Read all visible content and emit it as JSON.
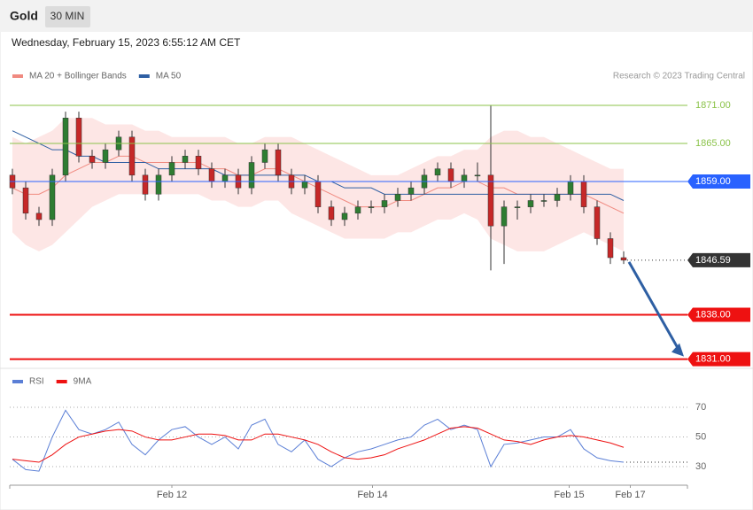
{
  "header": {
    "title": "Gold",
    "interval": "30 MIN",
    "timestamp": "Wednesday, February 15, 2023 6:55:12 AM CET",
    "source": "Research © 2023 Trading Central"
  },
  "chart_data": [
    {
      "type": "candlestick",
      "up_color": "#2e7d32",
      "down_color": "#c62828",
      "xlim": [
        -0.2,
        50.8
      ],
      "ylim": [
        1829.7,
        1872.67
      ],
      "open": [
        1860,
        1858,
        1854,
        1853,
        1860,
        1869,
        1863,
        1862,
        1864,
        1866,
        1860,
        1857,
        1860,
        1862,
        1863,
        1861,
        1859,
        1860,
        1858,
        1862,
        1864,
        1860,
        1858,
        1859,
        1855,
        1853,
        1854,
        1855,
        1855,
        1856,
        1857,
        1858,
        1860,
        1861,
        1859,
        1860,
        1860,
        1852,
        1855,
        1855,
        1856,
        1856,
        1857,
        1859,
        1855,
        1850,
        1847
      ],
      "high": [
        1861,
        1859,
        1855,
        1861,
        1870,
        1870,
        1864,
        1865,
        1867,
        1867,
        1861,
        1861,
        1863,
        1864,
        1864,
        1862,
        1861,
        1861,
        1863,
        1865,
        1865,
        1861,
        1860,
        1860,
        1856,
        1855,
        1856,
        1856,
        1857,
        1858,
        1859,
        1861,
        1862,
        1862,
        1861,
        1862,
        1871,
        1856,
        1856,
        1857,
        1857,
        1858,
        1860,
        1860,
        1856,
        1851,
        1848
      ],
      "low": [
        1857,
        1853,
        1852,
        1852,
        1859,
        1862,
        1861,
        1861,
        1863,
        1859,
        1856,
        1856,
        1859,
        1861,
        1860,
        1858,
        1858,
        1857,
        1857,
        1861,
        1859,
        1857,
        1857,
        1854,
        1852,
        1852,
        1853,
        1854,
        1854,
        1855,
        1856,
        1857,
        1859,
        1858,
        1858,
        1859,
        1845,
        1846,
        1853,
        1854,
        1855,
        1855,
        1856,
        1854,
        1849,
        1846,
        1846
      ],
      "close": [
        1858,
        1854,
        1853,
        1860,
        1869,
        1863,
        1862,
        1864,
        1866,
        1860,
        1857,
        1860,
        1862,
        1863,
        1861,
        1859,
        1860,
        1858,
        1862,
        1864,
        1860,
        1858,
        1859,
        1855,
        1853,
        1854,
        1855,
        1855,
        1856,
        1857,
        1858,
        1860,
        1861,
        1859,
        1860,
        1860,
        1852,
        1855,
        1855,
        1856,
        1856,
        1857,
        1859,
        1855,
        1850,
        1847,
        1846.6
      ],
      "band": {
        "color": "#fde0de",
        "upper": [
          1866,
          1865,
          1866,
          1867,
          1869,
          1869,
          1869,
          1868,
          1868,
          1868,
          1867,
          1867,
          1866,
          1866,
          1866,
          1866,
          1866,
          1865,
          1865,
          1866,
          1866,
          1866,
          1865,
          1864,
          1863,
          1862,
          1861,
          1860,
          1860,
          1860,
          1861,
          1862,
          1863,
          1863,
          1864,
          1864,
          1866,
          1867,
          1867,
          1866,
          1866,
          1865,
          1864,
          1863,
          1862,
          1861,
          1861
        ],
        "lower": [
          1851,
          1849,
          1848,
          1849,
          1851,
          1853,
          1855,
          1856,
          1857,
          1857,
          1857,
          1857,
          1857,
          1857,
          1857,
          1856,
          1856,
          1855,
          1855,
          1856,
          1856,
          1854,
          1853,
          1852,
          1851,
          1850,
          1850,
          1850,
          1850,
          1851,
          1851,
          1852,
          1853,
          1853,
          1854,
          1853,
          1850,
          1849,
          1848,
          1848,
          1848,
          1849,
          1850,
          1851,
          1850,
          1849,
          1848
        ]
      },
      "series": [
        {
          "name": "MA 20 + Bollinger Bands",
          "color": "#f08a80",
          "values": [
            1858,
            1857,
            1857,
            1858,
            1860,
            1861,
            1862,
            1862,
            1863,
            1863,
            1862,
            1862,
            1862,
            1862,
            1862,
            1861,
            1861,
            1860,
            1860,
            1861,
            1861,
            1860,
            1859,
            1858,
            1857,
            1856,
            1855,
            1855,
            1855,
            1856,
            1856,
            1857,
            1858,
            1858,
            1859,
            1859,
            1858,
            1858,
            1857,
            1857,
            1857,
            1857,
            1857,
            1857,
            1856,
            1855,
            1854
          ]
        },
        {
          "name": "MA 50",
          "color": "#2e5fa3",
          "values": [
            1867,
            1866,
            1865,
            1864,
            1864,
            1863,
            1863,
            1862,
            1862,
            1862,
            1862,
            1861,
            1861,
            1861,
            1861,
            1861,
            1860,
            1860,
            1860,
            1860,
            1860,
            1860,
            1860,
            1859,
            1859,
            1858,
            1858,
            1858,
            1857,
            1857,
            1857,
            1857,
            1857,
            1857,
            1857,
            1857,
            1857,
            1857,
            1857,
            1857,
            1857,
            1857,
            1857,
            1857,
            1857,
            1857,
            1856
          ]
        }
      ],
      "levels": [
        {
          "value": 1871,
          "label": "1871.00",
          "color": "#8bc34a",
          "style": "plain"
        },
        {
          "value": 1865,
          "label": "1865.00",
          "color": "#8bc34a",
          "style": "plain"
        },
        {
          "value": 1859,
          "label": "1859.00",
          "color": "#2962ff",
          "style": "box"
        },
        {
          "value": 1846.59,
          "label": "1846.59",
          "color": "#333333",
          "style": "last"
        },
        {
          "value": 1838,
          "label": "1838.00",
          "color": "#ee1111",
          "style": "box"
        },
        {
          "value": 1831,
          "label": "1831.00",
          "color": "#ee1111",
          "style": "box"
        }
      ]
    },
    {
      "type": "line",
      "xlim": [
        -0.2,
        50.8
      ],
      "ylim": [
        17.5,
        76
      ],
      "yticks": [
        70,
        50,
        30
      ],
      "xticks": [
        {
          "value": 12,
          "label": "Feb 12"
        },
        {
          "value": 27.1,
          "label": "Feb 14"
        },
        {
          "value": 41.9,
          "label": "Feb 15"
        },
        {
          "value": 46.5,
          "label": "Feb 17"
        }
      ],
      "series": [
        {
          "name": "RSI",
          "color": "#5b7fd6",
          "values": [
            35,
            28,
            27,
            50,
            68,
            55,
            52,
            55,
            60,
            45,
            38,
            48,
            55,
            57,
            50,
            45,
            50,
            42,
            58,
            62,
            45,
            40,
            48,
            35,
            30,
            36,
            40,
            42,
            45,
            48,
            50,
            58,
            62,
            55,
            58,
            55,
            30,
            45,
            46,
            48,
            50,
            50,
            55,
            42,
            36,
            34,
            33
          ]
        },
        {
          "name": "9MA",
          "color": "#ee1111",
          "values": [
            35,
            34,
            33,
            38,
            45,
            50,
            52,
            54,
            55,
            54,
            50,
            48,
            48,
            50,
            52,
            52,
            51,
            48,
            48,
            52,
            52,
            50,
            48,
            45,
            40,
            36,
            35,
            36,
            38,
            42,
            45,
            48,
            52,
            56,
            57,
            56,
            52,
            48,
            47,
            45,
            48,
            50,
            51,
            50,
            48,
            46,
            43
          ]
        }
      ]
    }
  ]
}
